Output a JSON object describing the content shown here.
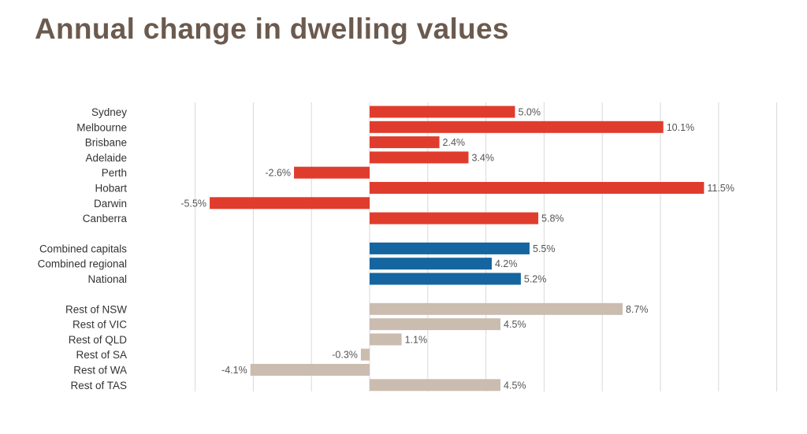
{
  "title": "Annual change in dwelling values",
  "colors": {
    "title": "#6b5a4e",
    "capitals": "#e03c2d",
    "combined": "#1565a0",
    "regional": "#cbbcb0",
    "grid": "#d9d9d9"
  },
  "chart_data": {
    "type": "bar",
    "orientation": "horizontal",
    "title": "Annual change in dwelling values",
    "unit": "%",
    "xlim": [
      -6,
      14
    ],
    "grid": true,
    "groups": [
      {
        "name": "",
        "color": "#e03c2d",
        "categories": [
          "Sydney",
          "Melbourne",
          "Brisbane",
          "Adelaide",
          "Perth",
          "Hobart",
          "Darwin",
          "Canberra"
        ],
        "values": [
          5.0,
          10.1,
          2.4,
          3.4,
          -2.6,
          11.5,
          -5.5,
          5.8
        ],
        "labels": [
          "5.0%",
          "10.1%",
          "2.4%",
          "3.4%",
          "-2.6%",
          "11.5%",
          "-5.5%",
          "5.8%"
        ]
      },
      {
        "name": "",
        "color": "#1565a0",
        "categories": [
          "Combined capitals",
          "Combined regional",
          "National"
        ],
        "values": [
          5.5,
          4.2,
          5.2
        ],
        "labels": [
          "5.5%",
          "4.2%",
          "5.2%"
        ]
      },
      {
        "name": "",
        "color": "#cbbcb0",
        "categories": [
          "Rest of NSW",
          "Rest of VIC",
          "Rest of QLD",
          "Rest of SA",
          "Rest of WA",
          "Rest of TAS"
        ],
        "values": [
          8.7,
          4.5,
          1.1,
          -0.3,
          -4.1,
          4.5
        ],
        "labels": [
          "8.7%",
          "4.5%",
          "1.1%",
          "-0.3%",
          "-4.1%",
          "4.5%"
        ]
      }
    ]
  }
}
